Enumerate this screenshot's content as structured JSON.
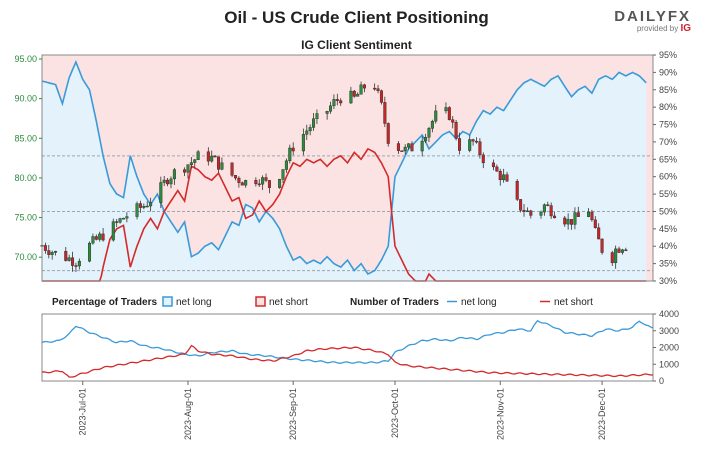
{
  "header": {
    "title": "Oil - US Crude Client Positioning",
    "subtitle": "IG Client Sentiment",
    "brand": "DAILYFX",
    "brand_a": "DAILY",
    "brand_b": "FX",
    "provided_by": "provided by",
    "provider": "IG"
  },
  "colors": {
    "long": "#3a9ad9",
    "short": "#d42a2a",
    "up": "#2e8b3e",
    "down": "#c62828",
    "long_fill": "#e3f2fb",
    "short_fill": "#fbe3e3"
  },
  "legend": {
    "pct_title": "Percentage of Traders",
    "pct_long": "net long",
    "pct_short": "net short",
    "num_title": "Number of Traders",
    "num_long": "net long",
    "num_short": "net short"
  },
  "chart_data": [
    {
      "type": "candlestick",
      "title": "IG Client Sentiment",
      "price_axis": {
        "ticks": [
          "95.00",
          "90.00",
          "85.00",
          "80.00",
          "75.00",
          "70.00"
        ],
        "ylim": [
          67,
          95.5
        ]
      },
      "pct_axis": {
        "ticks": [
          "95%",
          "90%",
          "85%",
          "80%",
          "75%",
          "70%",
          "65%",
          "60%",
          "55%",
          "50%",
          "45%",
          "40%",
          "35%",
          "30%"
        ],
        "ylim": [
          30,
          95
        ]
      },
      "x_ticks": [
        "2023-Jul-01",
        "2023-Aug-01",
        "2023-Sep-01",
        "2023-Oct-01",
        "2023-Nov-01",
        "2023-Dec-01"
      ],
      "x_tick_days": [
        12,
        43,
        74,
        104,
        135,
        165
      ],
      "day_range": [
        0,
        180
      ],
      "reference_levels_pct": [
        66,
        50,
        33
      ],
      "price_anchors": [
        [
          0,
          71.5
        ],
        [
          4,
          70.5
        ],
        [
          7,
          70
        ],
        [
          10,
          69.5
        ],
        [
          14,
          71.5
        ],
        [
          17,
          72.5
        ],
        [
          20,
          73.5
        ],
        [
          24,
          75
        ],
        [
          27,
          75.8
        ],
        [
          30,
          76.5
        ],
        [
          34,
          78
        ],
        [
          37,
          80
        ],
        [
          40,
          81
        ],
        [
          44,
          82
        ],
        [
          47,
          83
        ],
        [
          50,
          82.5
        ],
        [
          54,
          81
        ],
        [
          57,
          80
        ],
        [
          60,
          79.5
        ],
        [
          64,
          80
        ],
        [
          67,
          79
        ],
        [
          70,
          80.5
        ],
        [
          74,
          84
        ],
        [
          77,
          85.5
        ],
        [
          80,
          87
        ],
        [
          83,
          88
        ],
        [
          86,
          89.5
        ],
        [
          89,
          90.5
        ],
        [
          92,
          90
        ],
        [
          95,
          91.5
        ],
        [
          97,
          93
        ],
        [
          100,
          89
        ],
        [
          102,
          85
        ],
        [
          104,
          84
        ],
        [
          107,
          83.5
        ],
        [
          110,
          84
        ],
        [
          114,
          86.5
        ],
        [
          117,
          88.5
        ],
        [
          120,
          88
        ],
        [
          123,
          84
        ],
        [
          127,
          84.5
        ],
        [
          130,
          82.5
        ],
        [
          133,
          81
        ],
        [
          136,
          80
        ],
        [
          139,
          77
        ],
        [
          142,
          76
        ],
        [
          145,
          75
        ],
        [
          148,
          76.5
        ],
        [
          152,
          75.5
        ],
        [
          155,
          74.5
        ],
        [
          158,
          75
        ],
        [
          161,
          76
        ],
        [
          163,
          73
        ],
        [
          165,
          71
        ],
        [
          167,
          69
        ],
        [
          169,
          71
        ],
        [
          171,
          71.5
        ]
      ],
      "long_pct_anchors": [
        [
          0,
          87.5
        ],
        [
          4,
          86.5
        ],
        [
          6,
          81
        ],
        [
          8,
          88.5
        ],
        [
          10,
          93
        ],
        [
          12,
          88
        ],
        [
          14,
          85
        ],
        [
          16,
          76
        ],
        [
          18,
          66
        ],
        [
          20,
          58
        ],
        [
          22,
          55
        ],
        [
          24,
          54
        ],
        [
          26,
          66
        ],
        [
          28,
          60
        ],
        [
          30,
          55
        ],
        [
          32,
          52
        ],
        [
          34,
          55
        ],
        [
          36,
          50
        ],
        [
          38,
          47
        ],
        [
          40,
          44
        ],
        [
          42,
          47
        ],
        [
          44,
          37
        ],
        [
          46,
          38
        ],
        [
          48,
          40
        ],
        [
          50,
          41
        ],
        [
          52,
          39
        ],
        [
          54,
          43
        ],
        [
          56,
          47
        ],
        [
          58,
          46
        ],
        [
          60,
          52
        ],
        [
          62,
          51
        ],
        [
          64,
          47
        ],
        [
          66,
          50
        ],
        [
          68,
          48
        ],
        [
          70,
          45
        ],
        [
          72,
          40
        ],
        [
          74,
          36
        ],
        [
          76,
          37
        ],
        [
          78,
          35
        ],
        [
          80,
          36
        ],
        [
          82,
          35
        ],
        [
          84,
          37
        ],
        [
          86,
          35
        ],
        [
          88,
          34
        ],
        [
          90,
          36
        ],
        [
          92,
          33
        ],
        [
          94,
          35
        ],
        [
          96,
          32
        ],
        [
          98,
          33
        ],
        [
          100,
          36
        ],
        [
          102,
          40
        ],
        [
          104,
          60
        ],
        [
          106,
          64
        ],
        [
          108,
          68
        ],
        [
          110,
          70
        ],
        [
          112,
          72
        ],
        [
          114,
          68
        ],
        [
          116,
          70
        ],
        [
          118,
          72
        ],
        [
          120,
          73
        ],
        [
          122,
          71
        ],
        [
          124,
          73
        ],
        [
          126,
          72
        ],
        [
          128,
          76
        ],
        [
          130,
          79
        ],
        [
          132,
          78
        ],
        [
          134,
          80
        ],
        [
          136,
          79
        ],
        [
          138,
          82
        ],
        [
          140,
          85
        ],
        [
          142,
          87
        ],
        [
          144,
          88
        ],
        [
          146,
          87
        ],
        [
          148,
          86
        ],
        [
          150,
          88
        ],
        [
          152,
          89
        ],
        [
          154,
          86
        ],
        [
          156,
          83
        ],
        [
          158,
          85
        ],
        [
          160,
          86
        ],
        [
          162,
          84
        ],
        [
          164,
          88
        ],
        [
          166,
          89
        ],
        [
          168,
          88
        ],
        [
          170,
          90
        ],
        [
          172,
          89
        ],
        [
          174,
          90
        ],
        [
          176,
          89
        ],
        [
          178,
          87
        ]
      ]
    },
    {
      "type": "line",
      "title": "Number of Traders",
      "series": [
        {
          "name": "net long",
          "anchors": [
            [
              0,
              2300
            ],
            [
              5,
              2400
            ],
            [
              8,
              2800
            ],
            [
              10,
              3300
            ],
            [
              14,
              2900
            ],
            [
              18,
              2600
            ],
            [
              22,
              2300
            ],
            [
              26,
              2400
            ],
            [
              30,
              2100
            ],
            [
              36,
              1900
            ],
            [
              42,
              1600
            ],
            [
              46,
              1500
            ],
            [
              50,
              1700
            ],
            [
              56,
              1800
            ],
            [
              60,
              1600
            ],
            [
              66,
              1500
            ],
            [
              70,
              1400
            ],
            [
              74,
              1300
            ],
            [
              80,
              1200
            ],
            [
              86,
              1100
            ],
            [
              92,
              1100
            ],
            [
              98,
              1100
            ],
            [
              102,
              1200
            ],
            [
              104,
              1700
            ],
            [
              108,
              2100
            ],
            [
              112,
              2400
            ],
            [
              116,
              2500
            ],
            [
              120,
              2400
            ],
            [
              124,
              2600
            ],
            [
              128,
              2500
            ],
            [
              132,
              2800
            ],
            [
              136,
              2900
            ],
            [
              140,
              3100
            ],
            [
              144,
              3000
            ],
            [
              146,
              3600
            ],
            [
              150,
              3300
            ],
            [
              154,
              2900
            ],
            [
              158,
              2800
            ],
            [
              162,
              2700
            ],
            [
              166,
              3100
            ],
            [
              170,
              3000
            ],
            [
              174,
              3200
            ],
            [
              176,
              3600
            ],
            [
              178,
              3300
            ],
            [
              180,
              3200
            ]
          ]
        },
        {
          "name": "net short",
          "anchors": [
            [
              0,
              500
            ],
            [
              6,
              600
            ],
            [
              8,
              200
            ],
            [
              12,
              450
            ],
            [
              18,
              800
            ],
            [
              24,
              1000
            ],
            [
              30,
              1200
            ],
            [
              36,
              1400
            ],
            [
              42,
              1600
            ],
            [
              44,
              2100
            ],
            [
              46,
              1800
            ],
            [
              50,
              1600
            ],
            [
              56,
              1500
            ],
            [
              62,
              1300
            ],
            [
              68,
              1200
            ],
            [
              74,
              1500
            ],
            [
              78,
              1800
            ],
            [
              82,
              1900
            ],
            [
              86,
              1950
            ],
            [
              92,
              2000
            ],
            [
              98,
              1800
            ],
            [
              102,
              1600
            ],
            [
              104,
              1100
            ],
            [
              108,
              900
            ],
            [
              114,
              800
            ],
            [
              120,
              700
            ],
            [
              126,
              600
            ],
            [
              132,
              500
            ],
            [
              140,
              450
            ],
            [
              150,
              400
            ],
            [
              160,
              350
            ],
            [
              170,
              300
            ],
            [
              180,
              400
            ]
          ]
        }
      ],
      "y_ticks": [
        "4000",
        "3000",
        "2000",
        "1000",
        "0"
      ],
      "ylim": [
        0,
        4000
      ]
    }
  ]
}
